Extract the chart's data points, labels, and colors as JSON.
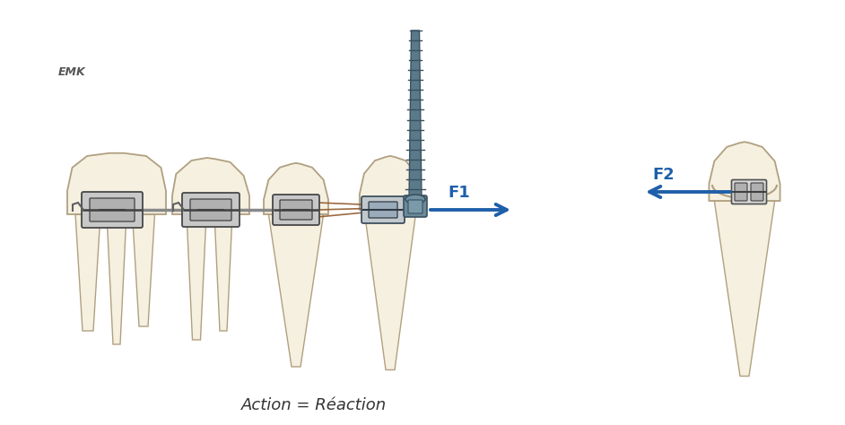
{
  "background_color": "#ffffff",
  "caption_text": "Action = Réaction",
  "caption_fontsize": 13,
  "caption_color": "#333333",
  "f1_label": "F1",
  "f2_label": "F2",
  "arrow_color": "#1f5faa",
  "tooth_fill": "#f5f0e0",
  "tooth_fill2": "#f0ead8",
  "tooth_edge": "#b0a080",
  "bracket_fill": "#c0c0c0",
  "bracket_edge": "#606060",
  "screw_fill": "#5a7a8a",
  "screw_thread": "#3a5060",
  "wire_color": "#888888",
  "elastic_color": "#8B5020",
  "emk_color": "#555555",
  "figsize": [
    9.42,
    4.74
  ],
  "dpi": 100
}
